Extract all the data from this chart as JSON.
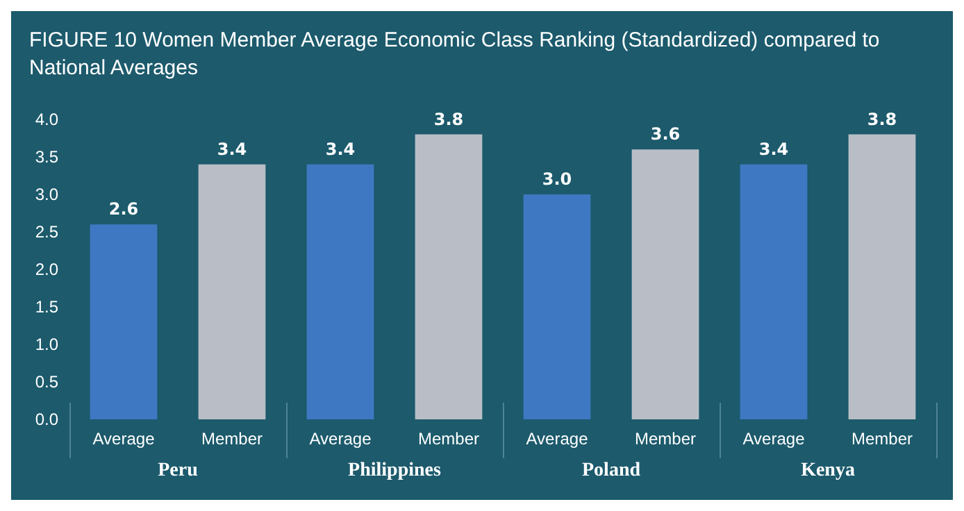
{
  "chart_data": {
    "type": "bar",
    "title": "FIGURE 10 Women Member Average Economic Class Ranking (Standardized) compared to National Averages",
    "categories": [
      "Peru",
      "Philippines",
      "Poland",
      "Kenya"
    ],
    "series": [
      {
        "name": "Average",
        "color": "#3f78c2",
        "values": [
          2.6,
          3.4,
          3.0,
          3.4
        ],
        "value_labels": [
          "2.6",
          "3.4",
          "3.0",
          "3.4"
        ]
      },
      {
        "name": "Member",
        "color": "#b9bec6",
        "values": [
          3.4,
          3.8,
          3.6,
          3.8
        ],
        "value_labels": [
          "3.4",
          "3.8",
          "3.6",
          "3.8"
        ]
      }
    ],
    "ylim": [
      0,
      4
    ],
    "yticks": [
      {
        "value": 0,
        "label": "0.0"
      },
      {
        "value": 0.5,
        "label": "0.5"
      },
      {
        "value": 1,
        "label": "1.0"
      },
      {
        "value": 1.5,
        "label": "1.5"
      },
      {
        "value": 2,
        "label": "2.0"
      },
      {
        "value": 2.5,
        "label": "2.5"
      },
      {
        "value": 3,
        "label": "3.0"
      },
      {
        "value": 3.5,
        "label": "3.5"
      },
      {
        "value": 4,
        "label": "4.0"
      }
    ],
    "grid": false,
    "legend": false
  }
}
